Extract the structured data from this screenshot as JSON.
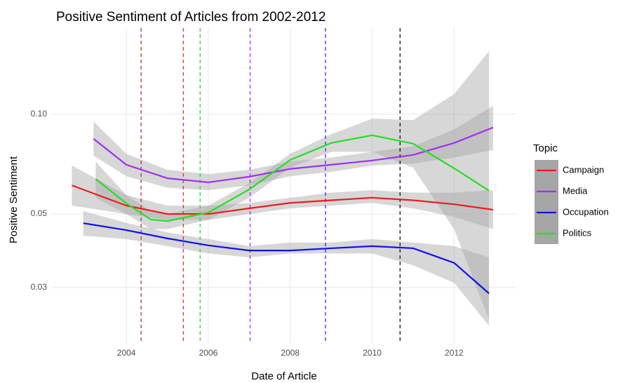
{
  "chart_data": {
    "type": "line",
    "title": "Positive Sentiment of Articles from 2002-2012",
    "x_label": "Date of Article",
    "y_label": "Positive  Sentiment",
    "legend_title": "Topic",
    "legend_position": "right",
    "log_y": true,
    "grid": true,
    "xlim": [
      2002.2,
      2013.5
    ],
    "ylim": [
      0.0203,
      0.182
    ],
    "xticks": [
      2004,
      2006,
      2008,
      2010,
      2012
    ],
    "yticks": [
      0.03,
      0.05,
      {
        "value": 0.1,
        "label": "0.10"
      }
    ],
    "band_color": "#a6a6a6",
    "vlines": [
      {
        "x": 2004.36,
        "color": "#a52a2a"
      },
      {
        "x": 2005.39,
        "color": "#e8202a"
      },
      {
        "x": 2005.8,
        "color": "#22cc22"
      },
      {
        "x": 2007.02,
        "color": "#a020f0"
      },
      {
        "x": 2008.86,
        "color": "#2020ee"
      },
      {
        "x": 2010.68,
        "color": "#000000"
      }
    ],
    "series": [
      {
        "name": "Campaign",
        "color": "#ee1c1c",
        "x": [
          2002.67,
          2004,
          2005,
          2006,
          2007,
          2008,
          2009,
          2010,
          2011,
          2012,
          2012.95
        ],
        "values": [
          0.061,
          0.053,
          0.05,
          0.05,
          0.052,
          0.054,
          0.055,
          0.056,
          0.055,
          0.0535,
          0.0515
        ],
        "upper": [
          0.07,
          0.057,
          0.053,
          0.053,
          0.054,
          0.056,
          0.058,
          0.059,
          0.058,
          0.058,
          0.059
        ],
        "lower": [
          0.053,
          0.05,
          0.048,
          0.048,
          0.05,
          0.052,
          0.053,
          0.054,
          0.052,
          0.049,
          0.045
        ]
      },
      {
        "name": "Media",
        "color": "#a030f0",
        "x": [
          2003.2,
          2004,
          2005,
          2006,
          2007,
          2008,
          2009,
          2010,
          2011,
          2012,
          2012.95
        ],
        "values": [
          0.0843,
          0.0704,
          0.0641,
          0.0623,
          0.0648,
          0.0684,
          0.0704,
          0.0725,
          0.0754,
          0.0819,
          0.0912
        ],
        "upper": [
          0.095,
          0.076,
          0.068,
          0.066,
          0.068,
          0.072,
          0.074,
          0.077,
          0.08,
          0.09,
          0.106
        ],
        "lower": [
          0.075,
          0.065,
          0.06,
          0.059,
          0.061,
          0.065,
          0.067,
          0.07,
          0.071,
          0.074,
          0.078
        ]
      },
      {
        "name": "Occupation",
        "color": "#1010ee",
        "x": [
          2002.95,
          2004,
          2005,
          2006,
          2007,
          2008,
          2009,
          2010,
          2011,
          2012,
          2012.85
        ],
        "values": [
          0.0469,
          0.0447,
          0.0422,
          0.0402,
          0.0388,
          0.0388,
          0.0394,
          0.04,
          0.0394,
          0.0356,
          0.0288
        ],
        "upper": [
          0.051,
          0.047,
          0.044,
          0.042,
          0.04,
          0.041,
          0.041,
          0.042,
          0.041,
          0.04,
          0.037
        ],
        "lower": [
          0.043,
          0.042,
          0.04,
          0.038,
          0.037,
          0.038,
          0.038,
          0.038,
          0.035,
          0.031,
          0.023
        ]
      },
      {
        "name": "Politics",
        "color": "#22e022",
        "x": [
          2003.25,
          2004,
          2004.6,
          2005,
          2006,
          2007,
          2008,
          2009,
          2010,
          2011,
          2012,
          2012.85
        ],
        "values": [
          0.0638,
          0.0538,
          0.0481,
          0.0476,
          0.0505,
          0.0593,
          0.0728,
          0.0819,
          0.0864,
          0.0815,
          0.0687,
          0.0588
        ],
        "upper": [
          0.072,
          0.057,
          0.051,
          0.05,
          0.053,
          0.062,
          0.076,
          0.087,
          0.097,
          0.096,
          0.115,
          0.155
        ],
        "lower": [
          0.056,
          0.05,
          0.045,
          0.045,
          0.048,
          0.056,
          0.069,
          0.077,
          0.077,
          0.069,
          0.045,
          0.024
        ]
      }
    ]
  }
}
